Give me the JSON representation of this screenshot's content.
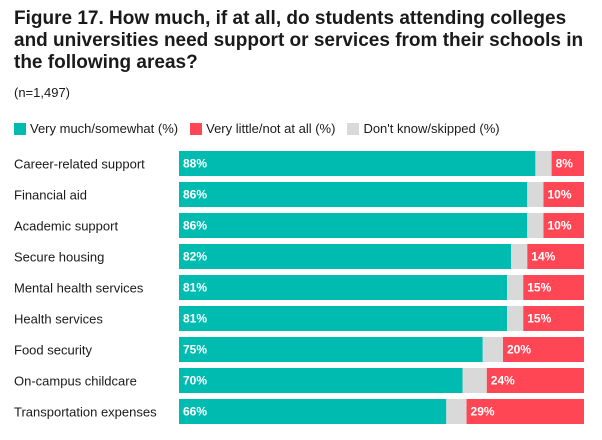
{
  "title": "Figure 17. How much, if at all, do students attending colleges and universities need support or services from their schools in the following areas?",
  "subtitle": "(n=1,497)",
  "colors": {
    "very_much": "#00bcb0",
    "very_little": "#ff4655",
    "dont_know": "#d9d9d9"
  },
  "chart_data": {
    "type": "bar",
    "orientation": "horizontal",
    "stacked": true,
    "categories": [
      "Career-related support",
      "Financial aid",
      "Academic support",
      "Secure housing",
      "Mental health services",
      "Health services",
      "Food security",
      "On-campus childcare",
      "Transportation expenses"
    ],
    "series": [
      {
        "name": "Very much/somewhat (%)",
        "color": "#00bcb0",
        "values": [
          88,
          86,
          86,
          82,
          81,
          81,
          75,
          70,
          66
        ]
      },
      {
        "name": "Don't know/skipped (%)",
        "color": "#d9d9d9",
        "values": [
          4,
          4,
          4,
          4,
          4,
          4,
          5,
          6,
          5
        ]
      },
      {
        "name": "Very little/not at all (%)",
        "color": "#ff4655",
        "values": [
          8,
          10,
          10,
          14,
          15,
          15,
          20,
          24,
          29
        ]
      }
    ],
    "data_labels": {
      "very_much": [
        "88%",
        "86%",
        "86%",
        "82%",
        "81%",
        "81%",
        "75%",
        "70%",
        "66%"
      ],
      "very_little": [
        "8%",
        "10%",
        "10%",
        "14%",
        "15%",
        "15%",
        "20%",
        "24%",
        "29%"
      ]
    },
    "legend": [
      {
        "label": "Very much/somewhat (%)",
        "color": "#00bcb0"
      },
      {
        "label": "Very little/not at all (%)",
        "color": "#ff4655"
      },
      {
        "label": "Don't know/skipped (%)",
        "color": "#d9d9d9"
      }
    ],
    "xlim": [
      0,
      100
    ],
    "grid": false,
    "legend_position": "top-left"
  }
}
